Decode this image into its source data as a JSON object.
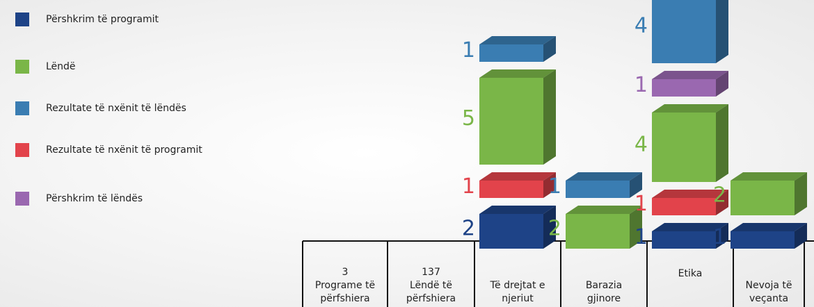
{
  "chart_data": {
    "type": "bar3d-stacked",
    "categories": [
      "3\nPrograme të\npërfshiera",
      "137\nLëndë të\npërfshiera",
      "Të drejtat e\nnjeriut",
      "Barazia\ngjinore",
      "Etika",
      "Nevoja të\nveçanta"
    ],
    "series": [
      {
        "name": "Përshkrim të programit",
        "color": "#1e4387",
        "values": [
          null,
          null,
          2,
          null,
          1,
          1
        ]
      },
      {
        "name": "Lëndë",
        "color": "#7ab648",
        "values": [
          null,
          null,
          5,
          2,
          4,
          2
        ]
      },
      {
        "name": "Rezultate të nxënit të lëndës",
        "color": "#3a7db2",
        "values": [
          null,
          null,
          1,
          1,
          4,
          null
        ]
      },
      {
        "name": "Rezultate të nxënit të programit",
        "color": "#e2434b",
        "values": [
          null,
          null,
          1,
          null,
          1,
          null
        ]
      },
      {
        "name": "Përshkrim të lëndës",
        "color": "#9a68b0",
        "values": [
          null,
          null,
          null,
          null,
          1,
          null
        ]
      }
    ]
  }
}
